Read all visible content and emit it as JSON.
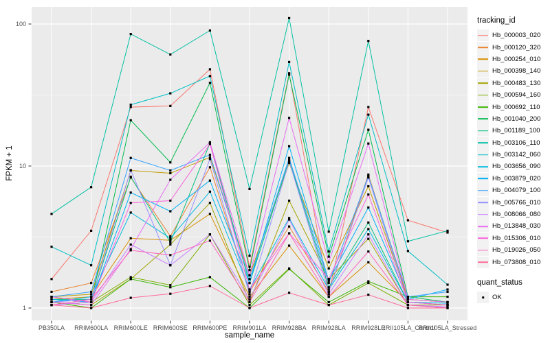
{
  "axes": {
    "x_title": "sample_name",
    "y_title": "FPKM + 1"
  },
  "legend": {
    "title": "tracking_id"
  },
  "legend2": {
    "title": "quant_status",
    "items": [
      {
        "label": "OK",
        "marker": "black-square"
      }
    ]
  },
  "chart_data": {
    "type": "line",
    "title": "",
    "xlabel": "sample_name",
    "ylabel": "FPKM + 1",
    "y_scale": "log10",
    "ylim": [
      1,
      130
    ],
    "grid": "on",
    "legend_position": "right",
    "panel_bg": "#EBEBEB",
    "grid_color": "#FFFFFF",
    "axis_text_color": "#4D4D4D",
    "tick_color": "#333333",
    "point_color": "#000000",
    "point_shape": "square",
    "y_tick_labels": [
      "1",
      "10",
      "100"
    ],
    "y_tick_values": [
      1,
      10,
      100
    ],
    "y_minor_values": [
      3.1623,
      31.623
    ],
    "categories": [
      "PB350LA",
      "RRIM600LA",
      "RRIM600LE",
      "RRIM600SE",
      "RRIM600PE",
      "RRIM901LA",
      "RRIM928BA",
      "RRIM928LA",
      "RRIM928LE",
      "RRII105LA_Control",
      "RRII105LA_Stressed"
    ],
    "series": [
      {
        "name": "Hb_000003_020",
        "color": "#F8766D",
        "values": [
          1.6,
          3.5,
          26,
          26.5,
          48,
          1.95,
          45,
          1.25,
          26,
          4.15,
          3.4
        ]
      },
      {
        "name": "Hb_000120_320",
        "color": "#EA8331",
        "values": [
          1.3,
          1.5,
          8.3,
          3.2,
          9.8,
          1.3,
          3.75,
          1.3,
          8.7,
          1.15,
          1.1
        ]
      },
      {
        "name": "Hb_000254_010",
        "color": "#D89000",
        "values": [
          1.15,
          1.2,
          3.1,
          3.0,
          4.6,
          1.2,
          2.75,
          1.2,
          2.1,
          1.1,
          1.05
        ]
      },
      {
        "name": "Hb_000398_140",
        "color": "#C09B00",
        "values": [
          1.2,
          1.25,
          9.3,
          8.9,
          11.5,
          1.7,
          10.5,
          1.9,
          7.2,
          1.15,
          1.1
        ]
      },
      {
        "name": "Hb_000483_130",
        "color": "#A3A500",
        "values": [
          1.1,
          1.05,
          1.6,
          2.8,
          5.5,
          1.1,
          5.7,
          1.6,
          3.07,
          1.05,
          1.05
        ]
      },
      {
        "name": "Hb_000594_160",
        "color": "#7CAE00",
        "values": [
          1.05,
          1.1,
          1.65,
          1.45,
          3.3,
          1.05,
          1.9,
          1.05,
          1.5,
          1.05,
          1.0
        ]
      },
      {
        "name": "Hb_000692_110",
        "color": "#39B600",
        "values": [
          1.1,
          1.0,
          1.6,
          1.4,
          1.65,
          1.0,
          1.88,
          1.1,
          1.54,
          1.2,
          1.2
        ]
      },
      {
        "name": "Hb_001040_200",
        "color": "#00BB4E",
        "values": [
          1.2,
          1.1,
          21,
          10.6,
          38.5,
          1.85,
          44,
          2.3,
          18,
          1.2,
          1.1
        ]
      },
      {
        "name": "Hb_001189_100",
        "color": "#00BF7D",
        "values": [
          1.15,
          1.15,
          8.4,
          2.9,
          14.5,
          1.5,
          11,
          1.4,
          4.0,
          1.1,
          1.05
        ]
      },
      {
        "name": "Hb_003106_110",
        "color": "#00C1A3",
        "values": [
          4.6,
          7.1,
          85,
          61,
          90,
          6.9,
          110,
          3.45,
          76,
          2.95,
          3.5
        ]
      },
      {
        "name": "Hb_003142_060",
        "color": "#00BFC4",
        "values": [
          2.7,
          2.0,
          27,
          32.5,
          43,
          2.33,
          54,
          2.5,
          23,
          2.52,
          1.46
        ]
      },
      {
        "name": "Hb_003656_090",
        "color": "#00BAE0",
        "values": [
          1.1,
          1.2,
          4.7,
          3.1,
          6.6,
          1.35,
          4.3,
          1.35,
          3.6,
          1.1,
          1.08
        ]
      },
      {
        "name": "Hb_003879_020",
        "color": "#00B0F6",
        "values": [
          1.15,
          1.1,
          6.5,
          4.8,
          7.9,
          1.5,
          13.8,
          1.55,
          5.1,
          1.15,
          1.35
        ]
      },
      {
        "name": "Hb_004079_100",
        "color": "#35A2FF",
        "values": [
          1.2,
          1.3,
          11.4,
          9.3,
          12,
          1.6,
          11.4,
          1.5,
          8.5,
          1.2,
          1.3
        ]
      },
      {
        "name": "Hb_005766_010",
        "color": "#9590FF",
        "values": [
          1.1,
          1.15,
          9.35,
          2.0,
          11.2,
          1.25,
          10.8,
          1.3,
          8.3,
          1.1,
          1.05
        ]
      },
      {
        "name": "Hb_008066_080",
        "color": "#C77CFF",
        "values": [
          1.05,
          1.1,
          2.8,
          2.0,
          3.3,
          1.15,
          4.2,
          1.25,
          3.3,
          1.05,
          1.02
        ]
      },
      {
        "name": "Hb_013848_030",
        "color": "#E76BF3",
        "values": [
          1.1,
          1.05,
          2.6,
          8.0,
          14.7,
          1.7,
          21.8,
          2.1,
          14.4,
          1.15,
          1.1
        ]
      },
      {
        "name": "Hb_015306_010",
        "color": "#FA62DB",
        "values": [
          1.2,
          1.1,
          5.5,
          5.7,
          14.3,
          1.35,
          3.36,
          1.6,
          6.3,
          1.1,
          1.05
        ]
      },
      {
        "name": "Hb_019026_050",
        "color": "#FF62BC",
        "values": [
          1.05,
          1.15,
          2.55,
          2.36,
          2.98,
          1.1,
          3.36,
          1.2,
          2.5,
          1.05,
          1.0
        ]
      },
      {
        "name": "Hb_073808_010",
        "color": "#FF6A98",
        "values": [
          1.05,
          1.0,
          1.18,
          1.26,
          1.43,
          1.0,
          1.28,
          1.05,
          1.24,
          1.0,
          1.0
        ]
      }
    ]
  }
}
